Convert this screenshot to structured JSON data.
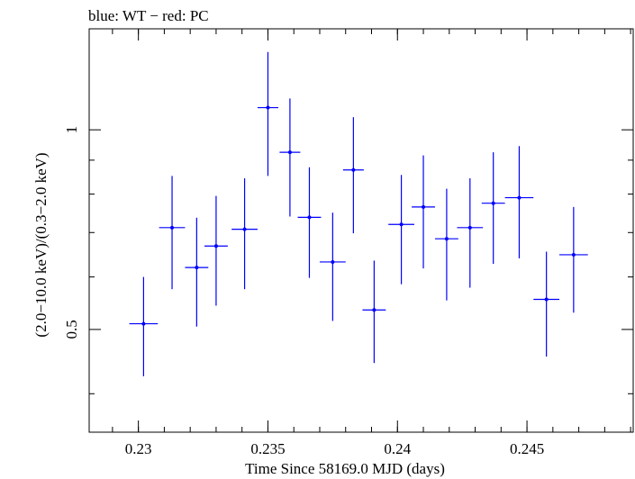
{
  "chart_data": {
    "type": "scatter",
    "title": "blue: WT − red: PC",
    "xlabel": "Time Since 58169.0 MJD (days)",
    "ylabel": "(2.0−10.0 keV)/(0.3−2.0 keV)",
    "xlim": [
      0.2281,
      0.2491
    ],
    "ylim": [
      0.35,
      1.42
    ],
    "y_scale": "log",
    "x_ticks": [
      {
        "value": 0.23,
        "label": "0.23"
      },
      {
        "value": 0.235,
        "label": "0.235"
      },
      {
        "value": 0.24,
        "label": "0.24"
      },
      {
        "value": 0.245,
        "label": "0.245"
      }
    ],
    "y_ticks": [
      {
        "value": 0.5,
        "label": "0.5"
      },
      {
        "value": 1,
        "label": "1"
      }
    ],
    "grid": false,
    "series": [
      {
        "color": "#0000ff",
        "points": [
          {
            "x": 0.2302,
            "xerr": 0.00055,
            "y": 0.51,
            "ylo": 0.425,
            "yhi": 0.6
          },
          {
            "x": 0.2313,
            "xerr": 0.0005,
            "y": 0.712,
            "ylo": 0.575,
            "yhi": 0.852
          },
          {
            "x": 0.23225,
            "xerr": 0.00045,
            "y": 0.62,
            "ylo": 0.505,
            "yhi": 0.737
          },
          {
            "x": 0.233,
            "xerr": 0.00045,
            "y": 0.668,
            "ylo": 0.543,
            "yhi": 0.795
          },
          {
            "x": 0.2341,
            "xerr": 0.0005,
            "y": 0.708,
            "ylo": 0.575,
            "yhi": 0.845
          },
          {
            "x": 0.235,
            "xerr": 0.0004,
            "y": 1.08,
            "ylo": 0.852,
            "yhi": 1.31
          },
          {
            "x": 0.23585,
            "xerr": 0.0004,
            "y": 0.925,
            "ylo": 0.74,
            "yhi": 1.115
          },
          {
            "x": 0.2366,
            "xerr": 0.00045,
            "y": 0.738,
            "ylo": 0.598,
            "yhi": 0.878
          },
          {
            "x": 0.2375,
            "xerr": 0.0005,
            "y": 0.632,
            "ylo": 0.515,
            "yhi": 0.75
          },
          {
            "x": 0.2383,
            "xerr": 0.0004,
            "y": 0.87,
            "ylo": 0.698,
            "yhi": 1.045
          },
          {
            "x": 0.2391,
            "xerr": 0.00045,
            "y": 0.535,
            "ylo": 0.445,
            "yhi": 0.635
          },
          {
            "x": 0.24015,
            "xerr": 0.0005,
            "y": 0.72,
            "ylo": 0.585,
            "yhi": 0.855
          },
          {
            "x": 0.241,
            "xerr": 0.00045,
            "y": 0.765,
            "ylo": 0.618,
            "yhi": 0.915
          },
          {
            "x": 0.2419,
            "xerr": 0.00045,
            "y": 0.685,
            "ylo": 0.553,
            "yhi": 0.815
          },
          {
            "x": 0.2428,
            "xerr": 0.0005,
            "y": 0.712,
            "ylo": 0.578,
            "yhi": 0.845
          },
          {
            "x": 0.2437,
            "xerr": 0.00045,
            "y": 0.775,
            "ylo": 0.628,
            "yhi": 0.925
          },
          {
            "x": 0.2447,
            "xerr": 0.00055,
            "y": 0.79,
            "ylo": 0.64,
            "yhi": 0.945
          },
          {
            "x": 0.24575,
            "xerr": 0.0005,
            "y": 0.555,
            "ylo": 0.455,
            "yhi": 0.655
          },
          {
            "x": 0.2468,
            "xerr": 0.00055,
            "y": 0.648,
            "ylo": 0.53,
            "yhi": 0.765
          }
        ]
      }
    ]
  }
}
